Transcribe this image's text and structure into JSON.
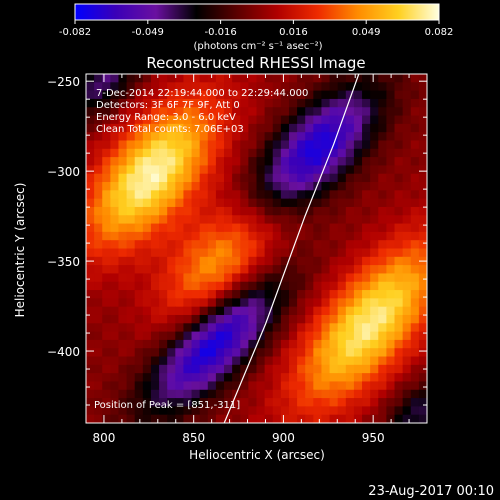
{
  "chart_data": {
    "type": "heatmap",
    "title": "Reconstructed RHESSI Image",
    "xlabel": "Heliocentric X (arcsec)",
    "ylabel": "Heliocentric Y (arcsec)",
    "xlim": [
      790,
      980
    ],
    "ylim": [
      -440,
      -246
    ],
    "xticks": [
      800,
      850,
      900,
      950
    ],
    "yticks": [
      -250,
      -300,
      -350,
      -400
    ],
    "colorbar": {
      "range": [
        -0.082,
        0.082
      ],
      "tick_labels": [
        "-0.082",
        "-0.049",
        "-0.016",
        "0.016",
        "0.049",
        "0.082"
      ],
      "unit_label": "(photons cm⁻² s⁻¹ asec⁻²)",
      "colors": [
        "#0000ff",
        "#3a00b8",
        "#6a10a0",
        "#000000",
        "#5a0000",
        "#b00000",
        "#ee2a00",
        "#ff8c00",
        "#ffd020",
        "#ffffe0"
      ]
    },
    "annotations": [
      "7-Dec-2014 22:19:44.000 to 22:29:44.000",
      "Detectors: 3F 6F 7F 9F, Att 0",
      "Energy Range: 3.0 - 6.0 keV",
      "Clean    Total counts: 7.06E+03"
    ],
    "peak_label": "Position of Peak = [851,-311]",
    "peak": [
      851,
      -311
    ],
    "limb_curve": [
      [
        867,
        -440
      ],
      [
        890,
        -385
      ],
      [
        912,
        -325
      ],
      [
        928,
        -285
      ],
      [
        942,
        -246
      ]
    ],
    "sources": [
      {
        "x": 826,
        "y": -302,
        "amp": 0.078,
        "sx": 35,
        "sy": 17,
        "angle": 50
      },
      {
        "x": 948,
        "y": -385,
        "amp": 0.074,
        "sx": 40,
        "sy": 17,
        "angle": 50
      },
      {
        "x": 865,
        "y": -352,
        "amp": 0.05,
        "sx": 30,
        "sy": 18,
        "angle": 50
      },
      {
        "x": 862,
        "y": -395,
        "amp": -0.082,
        "sx": 34,
        "sy": 13,
        "angle": 45
      },
      {
        "x": 918,
        "y": -288,
        "amp": -0.075,
        "sx": 31,
        "sy": 14,
        "angle": 45
      },
      {
        "x": 800,
        "y": -250,
        "amp": -0.04,
        "sx": 18,
        "sy": 10,
        "angle": 45
      },
      {
        "x": 975,
        "y": -435,
        "amp": -0.035,
        "sx": 15,
        "sy": 10,
        "angle": 45
      }
    ],
    "footer_date": "23-Aug-2017 00:10"
  }
}
